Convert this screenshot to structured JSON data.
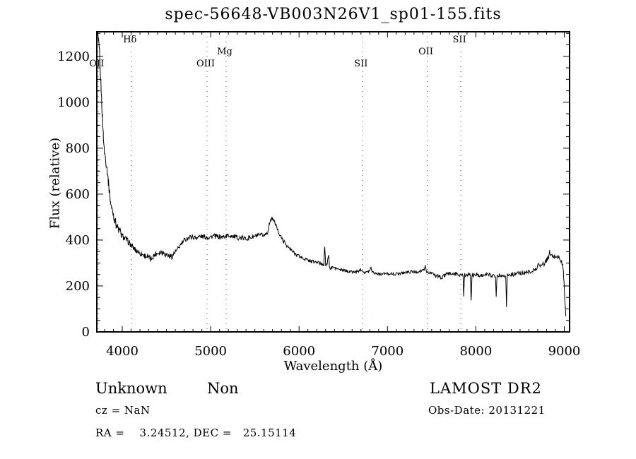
{
  "annotations": {
    "class_label": "Unknown",
    "subclass_label": "Non",
    "cz_label": "cz = NaN",
    "radec_label": "RA =    3.24512, DEC =   25.15114",
    "survey_label": "LAMOST DR2",
    "obsdate_label": "Obs-Date: 20131221"
  },
  "chart_data": {
    "type": "line",
    "title": "spec-56648-VB003N26V1_sp01-155.fits",
    "xlabel": "Wavelength (Å)",
    "ylabel": "Flux (relative)",
    "xlim": [
      3712,
      9060
    ],
    "ylim": [
      0,
      1307
    ],
    "x_ticks": [
      4000,
      5000,
      6000,
      7000,
      8000,
      9000
    ],
    "y_ticks": [
      0,
      200,
      400,
      600,
      800,
      1000,
      1200
    ],
    "x_minor_step": 100,
    "y_minor_step": 50,
    "grid": false,
    "legend": "none",
    "line_color": "#000000",
    "frame_color": "#000000",
    "spectral_line_color": "#993333",
    "spectral_lines": [
      {
        "label": "OII",
        "wavelength": 3727,
        "row": 2
      },
      {
        "label": "Hδ",
        "wavelength": 4102,
        "row": 0
      },
      {
        "label": "OIII",
        "wavelength": 4959,
        "row": 2
      },
      {
        "label": "Mg",
        "wavelength": 5175,
        "row": 1
      },
      {
        "label": "SII",
        "wavelength": 6716,
        "row": 2
      },
      {
        "label": "OII",
        "wavelength": 7450,
        "row": 1
      },
      {
        "label": "SII",
        "wavelength": 7830,
        "row": 0
      }
    ],
    "spectrum_points": [
      [
        3713,
        1310
      ],
      [
        3722,
        1295
      ],
      [
        3732,
        1260
      ],
      [
        3742,
        1215
      ],
      [
        3750,
        1140
      ],
      [
        3758,
        1085
      ],
      [
        3766,
        1010
      ],
      [
        3776,
        930
      ],
      [
        3786,
        855
      ],
      [
        3796,
        790
      ],
      [
        3806,
        768
      ],
      [
        3818,
        735
      ],
      [
        3830,
        705
      ],
      [
        3842,
        655
      ],
      [
        3854,
        615
      ],
      [
        3868,
        565
      ],
      [
        3882,
        535
      ],
      [
        3896,
        518
      ],
      [
        3912,
        492
      ],
      [
        3930,
        468
      ],
      [
        3950,
        452
      ],
      [
        3972,
        436
      ],
      [
        3996,
        420
      ],
      [
        4020,
        410
      ],
      [
        4050,
        400
      ],
      [
        4080,
        388
      ],
      [
        4110,
        372
      ],
      [
        4145,
        358
      ],
      [
        4180,
        348
      ],
      [
        4215,
        340
      ],
      [
        4250,
        333
      ],
      [
        4285,
        328
      ],
      [
        4320,
        315
      ],
      [
        4350,
        330
      ],
      [
        4385,
        342
      ],
      [
        4420,
        346
      ],
      [
        4455,
        348
      ],
      [
        4490,
        338
      ],
      [
        4525,
        332
      ],
      [
        4560,
        328
      ],
      [
        4595,
        345
      ],
      [
        4630,
        362
      ],
      [
        4665,
        382
      ],
      [
        4700,
        398
      ],
      [
        4740,
        408
      ],
      [
        4780,
        414
      ],
      [
        4830,
        410
      ],
      [
        4880,
        416
      ],
      [
        4930,
        414
      ],
      [
        4980,
        412
      ],
      [
        5030,
        418
      ],
      [
        5080,
        415
      ],
      [
        5130,
        412
      ],
      [
        5180,
        418
      ],
      [
        5230,
        420
      ],
      [
        5280,
        412
      ],
      [
        5330,
        410
      ],
      [
        5380,
        406
      ],
      [
        5430,
        410
      ],
      [
        5480,
        414
      ],
      [
        5530,
        418
      ],
      [
        5580,
        420
      ],
      [
        5620,
        424
      ],
      [
        5648,
        438
      ],
      [
        5662,
        468
      ],
      [
        5675,
        488
      ],
      [
        5695,
        492
      ],
      [
        5715,
        486
      ],
      [
        5735,
        468
      ],
      [
        5755,
        446
      ],
      [
        5780,
        424
      ],
      [
        5810,
        404
      ],
      [
        5845,
        384
      ],
      [
        5885,
        366
      ],
      [
        5930,
        348
      ],
      [
        5975,
        336
      ],
      [
        6025,
        324
      ],
      [
        6080,
        315
      ],
      [
        6140,
        308
      ],
      [
        6200,
        303
      ],
      [
        6250,
        297
      ],
      [
        6280,
        295
      ],
      [
        6290,
        372
      ],
      [
        6300,
        293
      ],
      [
        6320,
        298
      ],
      [
        6333,
        336
      ],
      [
        6343,
        290
      ],
      [
        6352,
        272
      ],
      [
        6375,
        282
      ],
      [
        6420,
        276
      ],
      [
        6470,
        270
      ],
      [
        6520,
        266
      ],
      [
        6570,
        263
      ],
      [
        6620,
        261
      ],
      [
        6670,
        263
      ],
      [
        6700,
        273
      ],
      [
        6715,
        268
      ],
      [
        6745,
        258
      ],
      [
        6785,
        262
      ],
      [
        6815,
        280
      ],
      [
        6830,
        262
      ],
      [
        6870,
        255
      ],
      [
        6920,
        252
      ],
      [
        6970,
        253
      ],
      [
        7020,
        254
      ],
      [
        7070,
        251
      ],
      [
        7120,
        253
      ],
      [
        7170,
        257
      ],
      [
        7220,
        260
      ],
      [
        7270,
        262
      ],
      [
        7320,
        261
      ],
      [
        7370,
        264
      ],
      [
        7415,
        268
      ],
      [
        7428,
        290
      ],
      [
        7440,
        262
      ],
      [
        7490,
        256
      ],
      [
        7540,
        247
      ],
      [
        7585,
        240
      ],
      [
        7615,
        236
      ],
      [
        7650,
        246
      ],
      [
        7700,
        255
      ],
      [
        7750,
        253
      ],
      [
        7800,
        250
      ],
      [
        7840,
        248
      ],
      [
        7855,
        246
      ],
      [
        7862,
        163
      ],
      [
        7872,
        246
      ],
      [
        7900,
        250
      ],
      [
        7938,
        247
      ],
      [
        7946,
        130
      ],
      [
        7956,
        247
      ],
      [
        8000,
        250
      ],
      [
        8060,
        247
      ],
      [
        8120,
        249
      ],
      [
        8180,
        246
      ],
      [
        8222,
        244
      ],
      [
        8230,
        152
      ],
      [
        8240,
        246
      ],
      [
        8290,
        247
      ],
      [
        8338,
        246
      ],
      [
        8346,
        113
      ],
      [
        8356,
        247
      ],
      [
        8400,
        250
      ],
      [
        8450,
        253
      ],
      [
        8500,
        255
      ],
      [
        8550,
        257
      ],
      [
        8600,
        262
      ],
      [
        8650,
        268
      ],
      [
        8690,
        278
      ],
      [
        8715,
        298
      ],
      [
        8740,
        288
      ],
      [
        8770,
        296
      ],
      [
        8800,
        312
      ],
      [
        8825,
        330
      ],
      [
        8835,
        347
      ],
      [
        8848,
        332
      ],
      [
        8870,
        326
      ],
      [
        8900,
        330
      ],
      [
        8925,
        328
      ],
      [
        8945,
        320
      ],
      [
        8962,
        308
      ],
      [
        8978,
        296
      ],
      [
        8990,
        262
      ],
      [
        8998,
        210
      ],
      [
        9006,
        140
      ],
      [
        9012,
        100
      ],
      [
        9017,
        70
      ]
    ],
    "noise_regions": [
      {
        "from": 3712,
        "to": 3990,
        "amp": 20
      },
      {
        "from": 3990,
        "to": 4600,
        "amp": 13
      },
      {
        "from": 4600,
        "to": 5645,
        "amp": 11
      },
      {
        "from": 5645,
        "to": 5800,
        "amp": 7
      },
      {
        "from": 5800,
        "to": 6400,
        "amp": 8
      },
      {
        "from": 6400,
        "to": 7520,
        "amp": 6
      },
      {
        "from": 7520,
        "to": 8700,
        "amp": 9
      },
      {
        "from": 8700,
        "to": 9020,
        "amp": 11
      }
    ]
  }
}
